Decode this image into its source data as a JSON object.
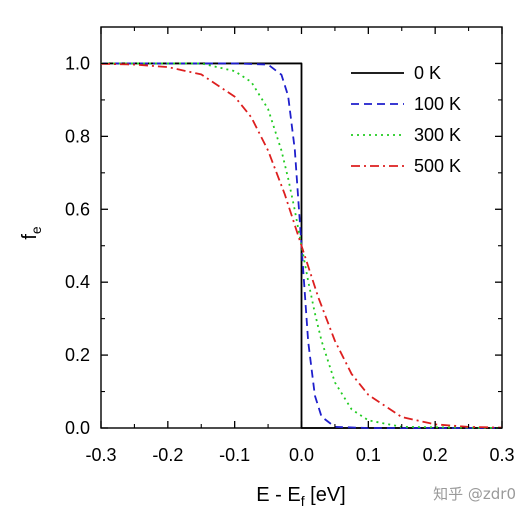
{
  "chart_data": {
    "type": "line",
    "title": "",
    "xlabel": "E - E",
    "xlabel_sub": "f",
    "xlabel_unit": " [eV]",
    "ylabel": "f",
    "ylabel_sub": "e",
    "xlim": [
      -0.3,
      0.3
    ],
    "ylim": [
      0.0,
      1.1
    ],
    "xticks": [
      -0.3,
      -0.2,
      -0.1,
      0.0,
      0.1,
      0.2,
      0.3
    ],
    "xtick_labels": [
      "-0.3",
      "-0.2",
      "-0.1",
      "0.0",
      "0.1",
      "0.2",
      "0.3"
    ],
    "yticks": [
      0.0,
      0.2,
      0.4,
      0.6,
      0.8,
      1.0
    ],
    "ytick_labels": [
      "0.0",
      "0.2",
      "0.4",
      "0.6",
      "0.8",
      "1.0"
    ],
    "grid": false,
    "legend_position": "top-right",
    "series": [
      {
        "name": "0 K",
        "color": "#000000",
        "dash": "solid",
        "x": [
          -0.3,
          0.0,
          0.0,
          0.3
        ],
        "y": [
          1.0,
          1.0,
          0.0,
          0.0
        ]
      },
      {
        "name": "100 K",
        "color": "#1f1fcc",
        "dash": "dashed",
        "x": [
          -0.3,
          -0.1,
          -0.05,
          -0.03,
          -0.02,
          -0.01,
          0.0,
          0.01,
          0.02,
          0.03,
          0.05,
          0.1,
          0.3
        ],
        "y": [
          1.0,
          1.0,
          0.997,
          0.969,
          0.911,
          0.763,
          0.5,
          0.237,
          0.089,
          0.031,
          0.003,
          0.0,
          0.0
        ]
      },
      {
        "name": "300 K",
        "color": "#22cc22",
        "dash": "dotted",
        "x": [
          -0.3,
          -0.15,
          -0.1,
          -0.075,
          -0.05,
          -0.03,
          -0.02,
          -0.01,
          0.0,
          0.01,
          0.02,
          0.03,
          0.05,
          0.075,
          0.1,
          0.15,
          0.3
        ],
        "y": [
          1.0,
          1.0,
          0.979,
          0.949,
          0.875,
          0.761,
          0.685,
          0.597,
          0.5,
          0.403,
          0.315,
          0.239,
          0.125,
          0.051,
          0.021,
          0.003,
          0.0
        ]
      },
      {
        "name": "500 K",
        "color": "#dd1f1f",
        "dash": "dashdot",
        "x": [
          -0.3,
          -0.25,
          -0.2,
          -0.15,
          -0.1,
          -0.075,
          -0.05,
          -0.025,
          0.0,
          0.025,
          0.05,
          0.075,
          0.1,
          0.15,
          0.2,
          0.25,
          0.3
        ],
        "y": [
          0.999,
          0.997,
          0.99,
          0.97,
          0.909,
          0.852,
          0.761,
          0.641,
          0.5,
          0.359,
          0.239,
          0.148,
          0.091,
          0.03,
          0.01,
          0.003,
          0.001
        ]
      }
    ]
  },
  "watermark": "知乎 @zdr0"
}
